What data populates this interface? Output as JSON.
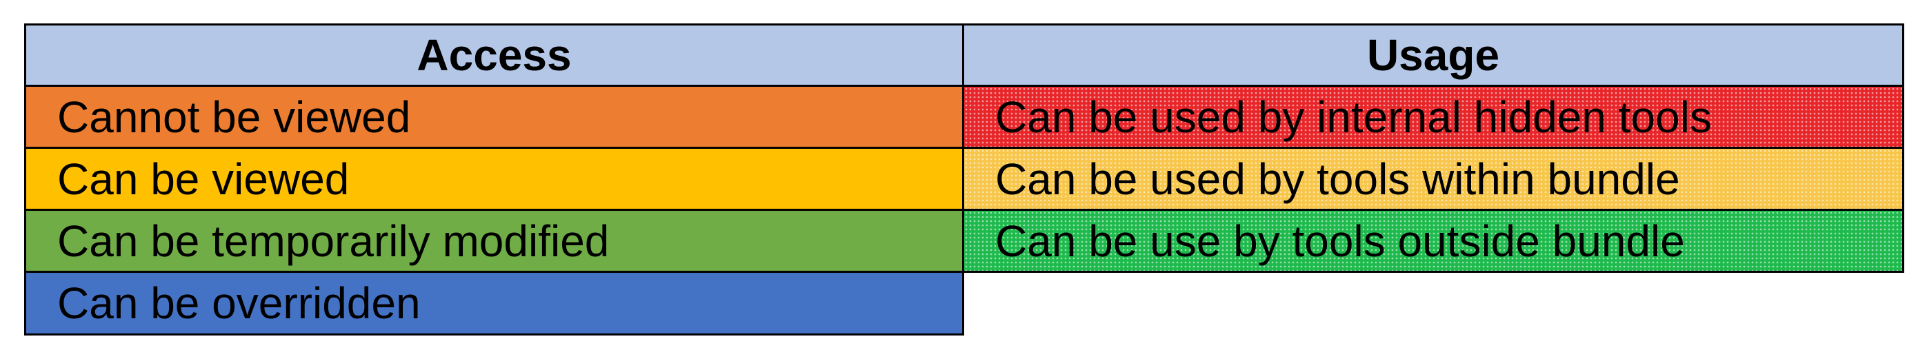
{
  "headers": {
    "access": "Access",
    "usage": "Usage"
  },
  "access_rows": [
    {
      "label": "Cannot be viewed",
      "color": "#ed7d31"
    },
    {
      "label": "Can be viewed",
      "color": "#ffc000"
    },
    {
      "label": "Can be temporarily modified",
      "color": "#70ad47"
    },
    {
      "label": "Can be overridden",
      "color": "#4472c4"
    }
  ],
  "usage_rows": [
    {
      "label": "Can be used by internal hidden tools",
      "color": "#e8262a",
      "pattern": "stipple"
    },
    {
      "label": "Can be used by tools within bundle",
      "color": "#f7c64a",
      "pattern": "stipple"
    },
    {
      "label": "Can be use by tools outside bundle",
      "color": "#1fba4d",
      "pattern": "stipple"
    }
  ],
  "header_color": "#b4c7e7",
  "border_color": "#000000"
}
